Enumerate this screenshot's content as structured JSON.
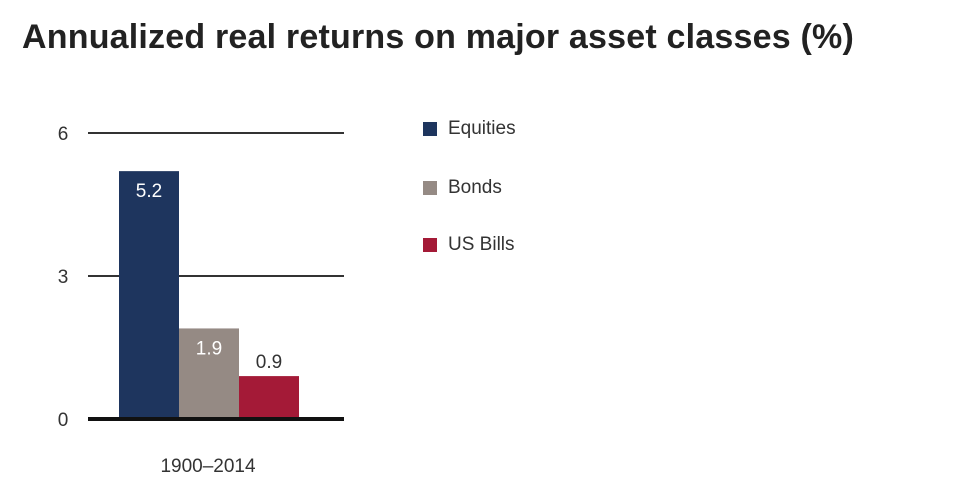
{
  "title": "Annualized real returns on major asset classes (%)",
  "chart_data": {
    "type": "bar",
    "categories": [
      "1900–2014"
    ],
    "series": [
      {
        "name": "Equities",
        "values": [
          5.2
        ],
        "color": "#1e355e",
        "data_label": "5.2"
      },
      {
        "name": "Bonds",
        "values": [
          1.9
        ],
        "color": "#958a84",
        "data_label": "1.9"
      },
      {
        "name": "US Bills",
        "values": [
          0.9
        ],
        "color": "#a41a37",
        "data_label": "0.9"
      }
    ],
    "y_ticks": [
      "0",
      "3",
      "6"
    ],
    "ylim": [
      0,
      6
    ],
    "grid": true,
    "legend_position": "right"
  }
}
